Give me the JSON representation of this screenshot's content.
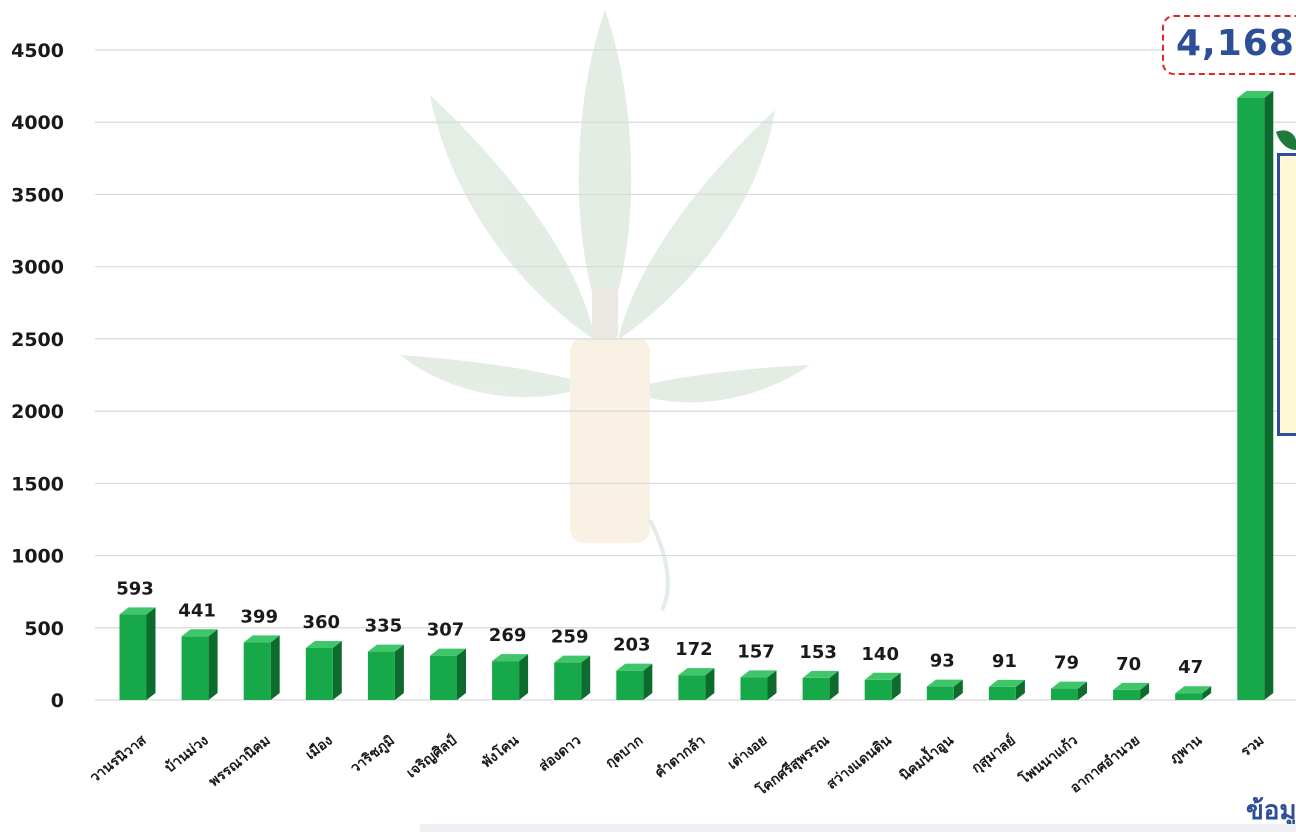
{
  "chart_data": {
    "type": "bar",
    "title": "",
    "xlabel": "",
    "ylabel": "",
    "ylim": [
      0,
      4500
    ],
    "yticks": [
      0,
      500,
      1000,
      1500,
      2000,
      2500,
      3000,
      3500,
      4000,
      4500
    ],
    "grid": true,
    "legend": "none",
    "categories": [
      "วานรนิวาส",
      "บ้านม่วง",
      "พรรณานิคม",
      "เมือง",
      "วาริชภูมิ",
      "เจริญศิลป์",
      "พังโคน",
      "ส่องดาว",
      "กุดบาก",
      "คำตากล้า",
      "เต่างอย",
      "โคกศรีสุพรรณ",
      "สว่างแดนดิน",
      "นิคมน้ำอูน",
      "กุสุมาลย์",
      "โพนนาแก้ว",
      "อากาศอำนวย",
      "ภูพาน",
      "รวม"
    ],
    "values": [
      593,
      441,
      399,
      360,
      335,
      307,
      269,
      259,
      203,
      172,
      157,
      153,
      140,
      93,
      91,
      79,
      70,
      47,
      4168
    ],
    "data_labels": [
      "593",
      "441",
      "399",
      "360",
      "335",
      "307",
      "269",
      "259",
      "203",
      "172",
      "157",
      "153",
      "140",
      "93",
      "91",
      "79",
      "70",
      "47",
      ""
    ],
    "bar_color": "#17a84a",
    "bar_side_color": "#0d6b2e",
    "bar_top_color": "#3fc66a"
  },
  "callout": {
    "total_text": "4,168",
    "border_color": "#e0262b",
    "text_color": "#2d4f97"
  },
  "footer": {
    "source_text": "ข้อมู"
  }
}
